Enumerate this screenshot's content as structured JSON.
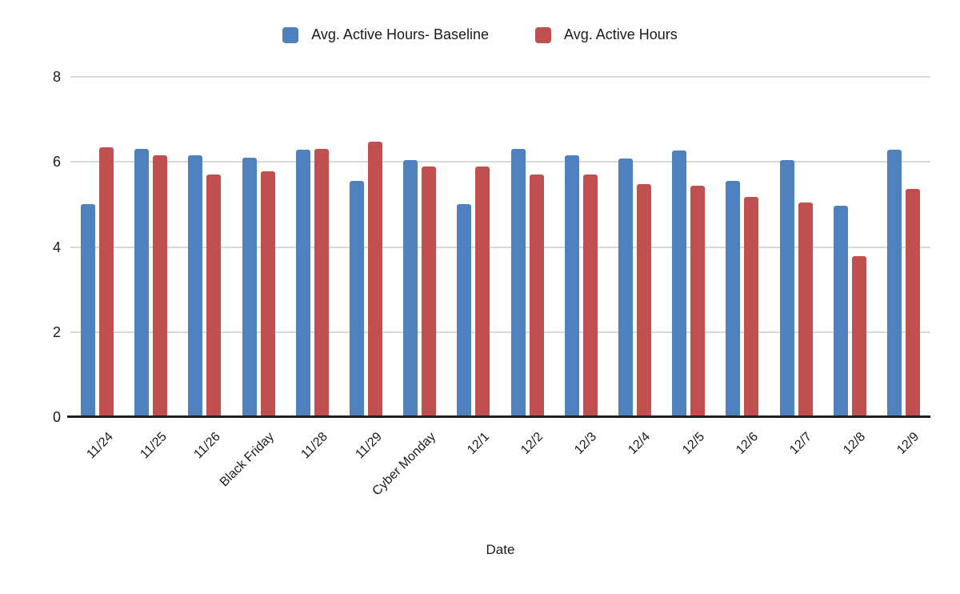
{
  "chart_data": {
    "type": "bar",
    "title": "",
    "xlabel": "Date",
    "ylabel": "",
    "ylim": [
      0,
      8
    ],
    "yticks": [
      0,
      2,
      4,
      6,
      8
    ],
    "grid": true,
    "legend_position": "top",
    "categories": [
      "11/24",
      "11/25",
      "11/26",
      "Black Friday",
      "11/28",
      "11/29",
      "Cyber Monday",
      "12/1",
      "12/2",
      "12/3",
      "12/4",
      "12/5",
      "12/6",
      "12/7",
      "12/8",
      "12/9"
    ],
    "series": [
      {
        "name": "Avg. Active Hours- Baseline",
        "color": "#4e81be",
        "values": [
          5.0,
          6.3,
          6.15,
          6.1,
          6.28,
          5.55,
          6.05,
          5.0,
          6.3,
          6.15,
          6.08,
          6.27,
          5.55,
          6.04,
          4.97,
          6.28
        ]
      },
      {
        "name": "Avg. Active Hours",
        "color": "#c05050",
        "values": [
          6.35,
          6.15,
          5.7,
          5.78,
          6.31,
          6.48,
          5.89,
          5.89,
          5.7,
          5.7,
          5.47,
          5.44,
          5.17,
          5.05,
          3.78,
          5.36
        ]
      }
    ],
    "colors": {
      "background": "#ffffff",
      "gridline": "#d9d9d9",
      "axis": "#1f1f1f",
      "text": "#1a1a1a"
    }
  }
}
